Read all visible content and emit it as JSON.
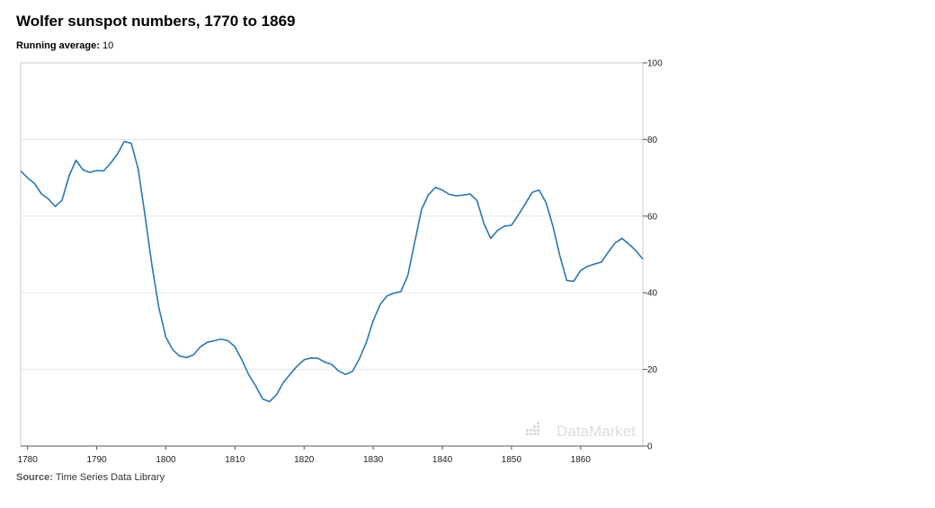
{
  "header": {
    "title": "Wolfer sunspot numbers, 1770 to 1869",
    "running_label": "Running average:",
    "running_value": "10"
  },
  "footer": {
    "source_label": "Source:",
    "source_value": "Time Series Data Library"
  },
  "watermark": "DataMarket",
  "colors": {
    "line": "#2a77b4",
    "grid": "#e6e6e6",
    "frame": "#cccccc"
  },
  "chart_data": {
    "type": "line",
    "title": "Wolfer sunspot numbers, 1770 to 1869",
    "xlabel": "",
    "ylabel": "",
    "xlim": [
      1779,
      1869
    ],
    "ylim": [
      0,
      100
    ],
    "yticks": [
      0,
      20,
      40,
      60,
      80,
      100
    ],
    "xticks": [
      1780,
      1790,
      1800,
      1810,
      1820,
      1830,
      1840,
      1850,
      1860
    ],
    "grid": true,
    "y_axis_side": "right",
    "series": [
      {
        "x": [
          1779,
          1780,
          1781,
          1782,
          1783,
          1784,
          1785,
          1786,
          1787,
          1788,
          1789,
          1790,
          1791,
          1792,
          1793,
          1794,
          1795,
          1796,
          1797,
          1798,
          1799,
          1800,
          1801,
          1802,
          1803,
          1804,
          1805,
          1806,
          1807,
          1808,
          1809,
          1810,
          1811,
          1812,
          1813,
          1814,
          1815,
          1816,
          1817,
          1818,
          1819,
          1820,
          1821,
          1822,
          1823,
          1824,
          1825,
          1826,
          1827,
          1828,
          1829,
          1830,
          1831,
          1832,
          1833,
          1834,
          1835,
          1836,
          1837,
          1838,
          1839,
          1840,
          1841,
          1842,
          1843,
          1844,
          1845,
          1846,
          1847,
          1848,
          1849,
          1850,
          1851,
          1852,
          1853,
          1854,
          1855,
          1856,
          1857,
          1858,
          1859,
          1860,
          1861,
          1862,
          1863,
          1864,
          1865,
          1866,
          1867,
          1868,
          1869
        ],
        "y": [
          71.8,
          70.0,
          68.5,
          65.8,
          64.5,
          62.5,
          64.2,
          70.5,
          74.6,
          72.1,
          71.4,
          71.9,
          71.8,
          73.8,
          76.2,
          79.5,
          79.0,
          72.3,
          60.0,
          47.0,
          36.0,
          28.4,
          25.1,
          23.5,
          23.1,
          23.8,
          25.9,
          27.1,
          27.5,
          27.9,
          27.5,
          25.9,
          22.5,
          18.6,
          15.7,
          12.3,
          11.6,
          13.4,
          16.6,
          18.8,
          20.9,
          22.5,
          23.0,
          22.9,
          21.9,
          21.3,
          19.6,
          18.7,
          19.5,
          22.8,
          27.0,
          32.7,
          36.9,
          39.2,
          39.9,
          40.3,
          44.5,
          53.2,
          61.8,
          65.6,
          67.5,
          66.8,
          65.7,
          65.3,
          65.5,
          65.8,
          64.1,
          58.1,
          54.2,
          56.3,
          57.4,
          57.6,
          60.3,
          63.2,
          66.2,
          66.8,
          63.5,
          57.4,
          49.7,
          43.2,
          43.0,
          45.8,
          46.9,
          47.5,
          48.0,
          50.6,
          53.0,
          54.2,
          52.7,
          51.0,
          48.8
        ]
      }
    ]
  }
}
